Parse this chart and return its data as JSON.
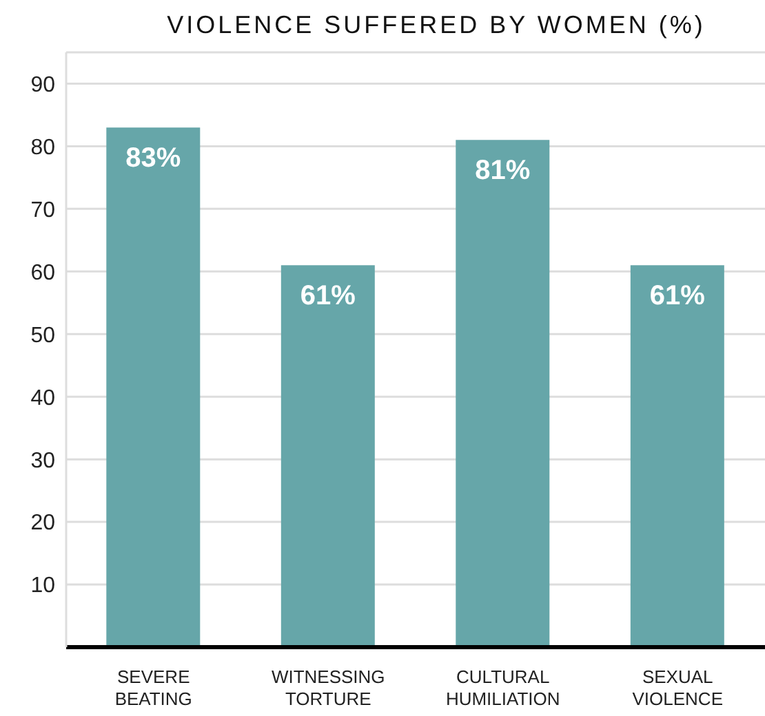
{
  "chart_data": {
    "type": "bar",
    "title": "VIOLENCE SUFFERED BY WOMEN (%)",
    "categories": [
      "SEVERE BEATING",
      "WITNESSING TORTURE",
      "CULTURAL HUMILIATION",
      "SEXUAL VIOLENCE"
    ],
    "values": [
      83,
      61,
      81,
      61
    ],
    "color": "#66a6a9",
    "value_labels": [
      "83%",
      "61%",
      "81%",
      "61%"
    ],
    "ylim": [
      0,
      95
    ],
    "yticks": [
      10,
      20,
      30,
      40,
      50,
      60,
      70,
      80,
      90
    ],
    "grid": "y"
  }
}
